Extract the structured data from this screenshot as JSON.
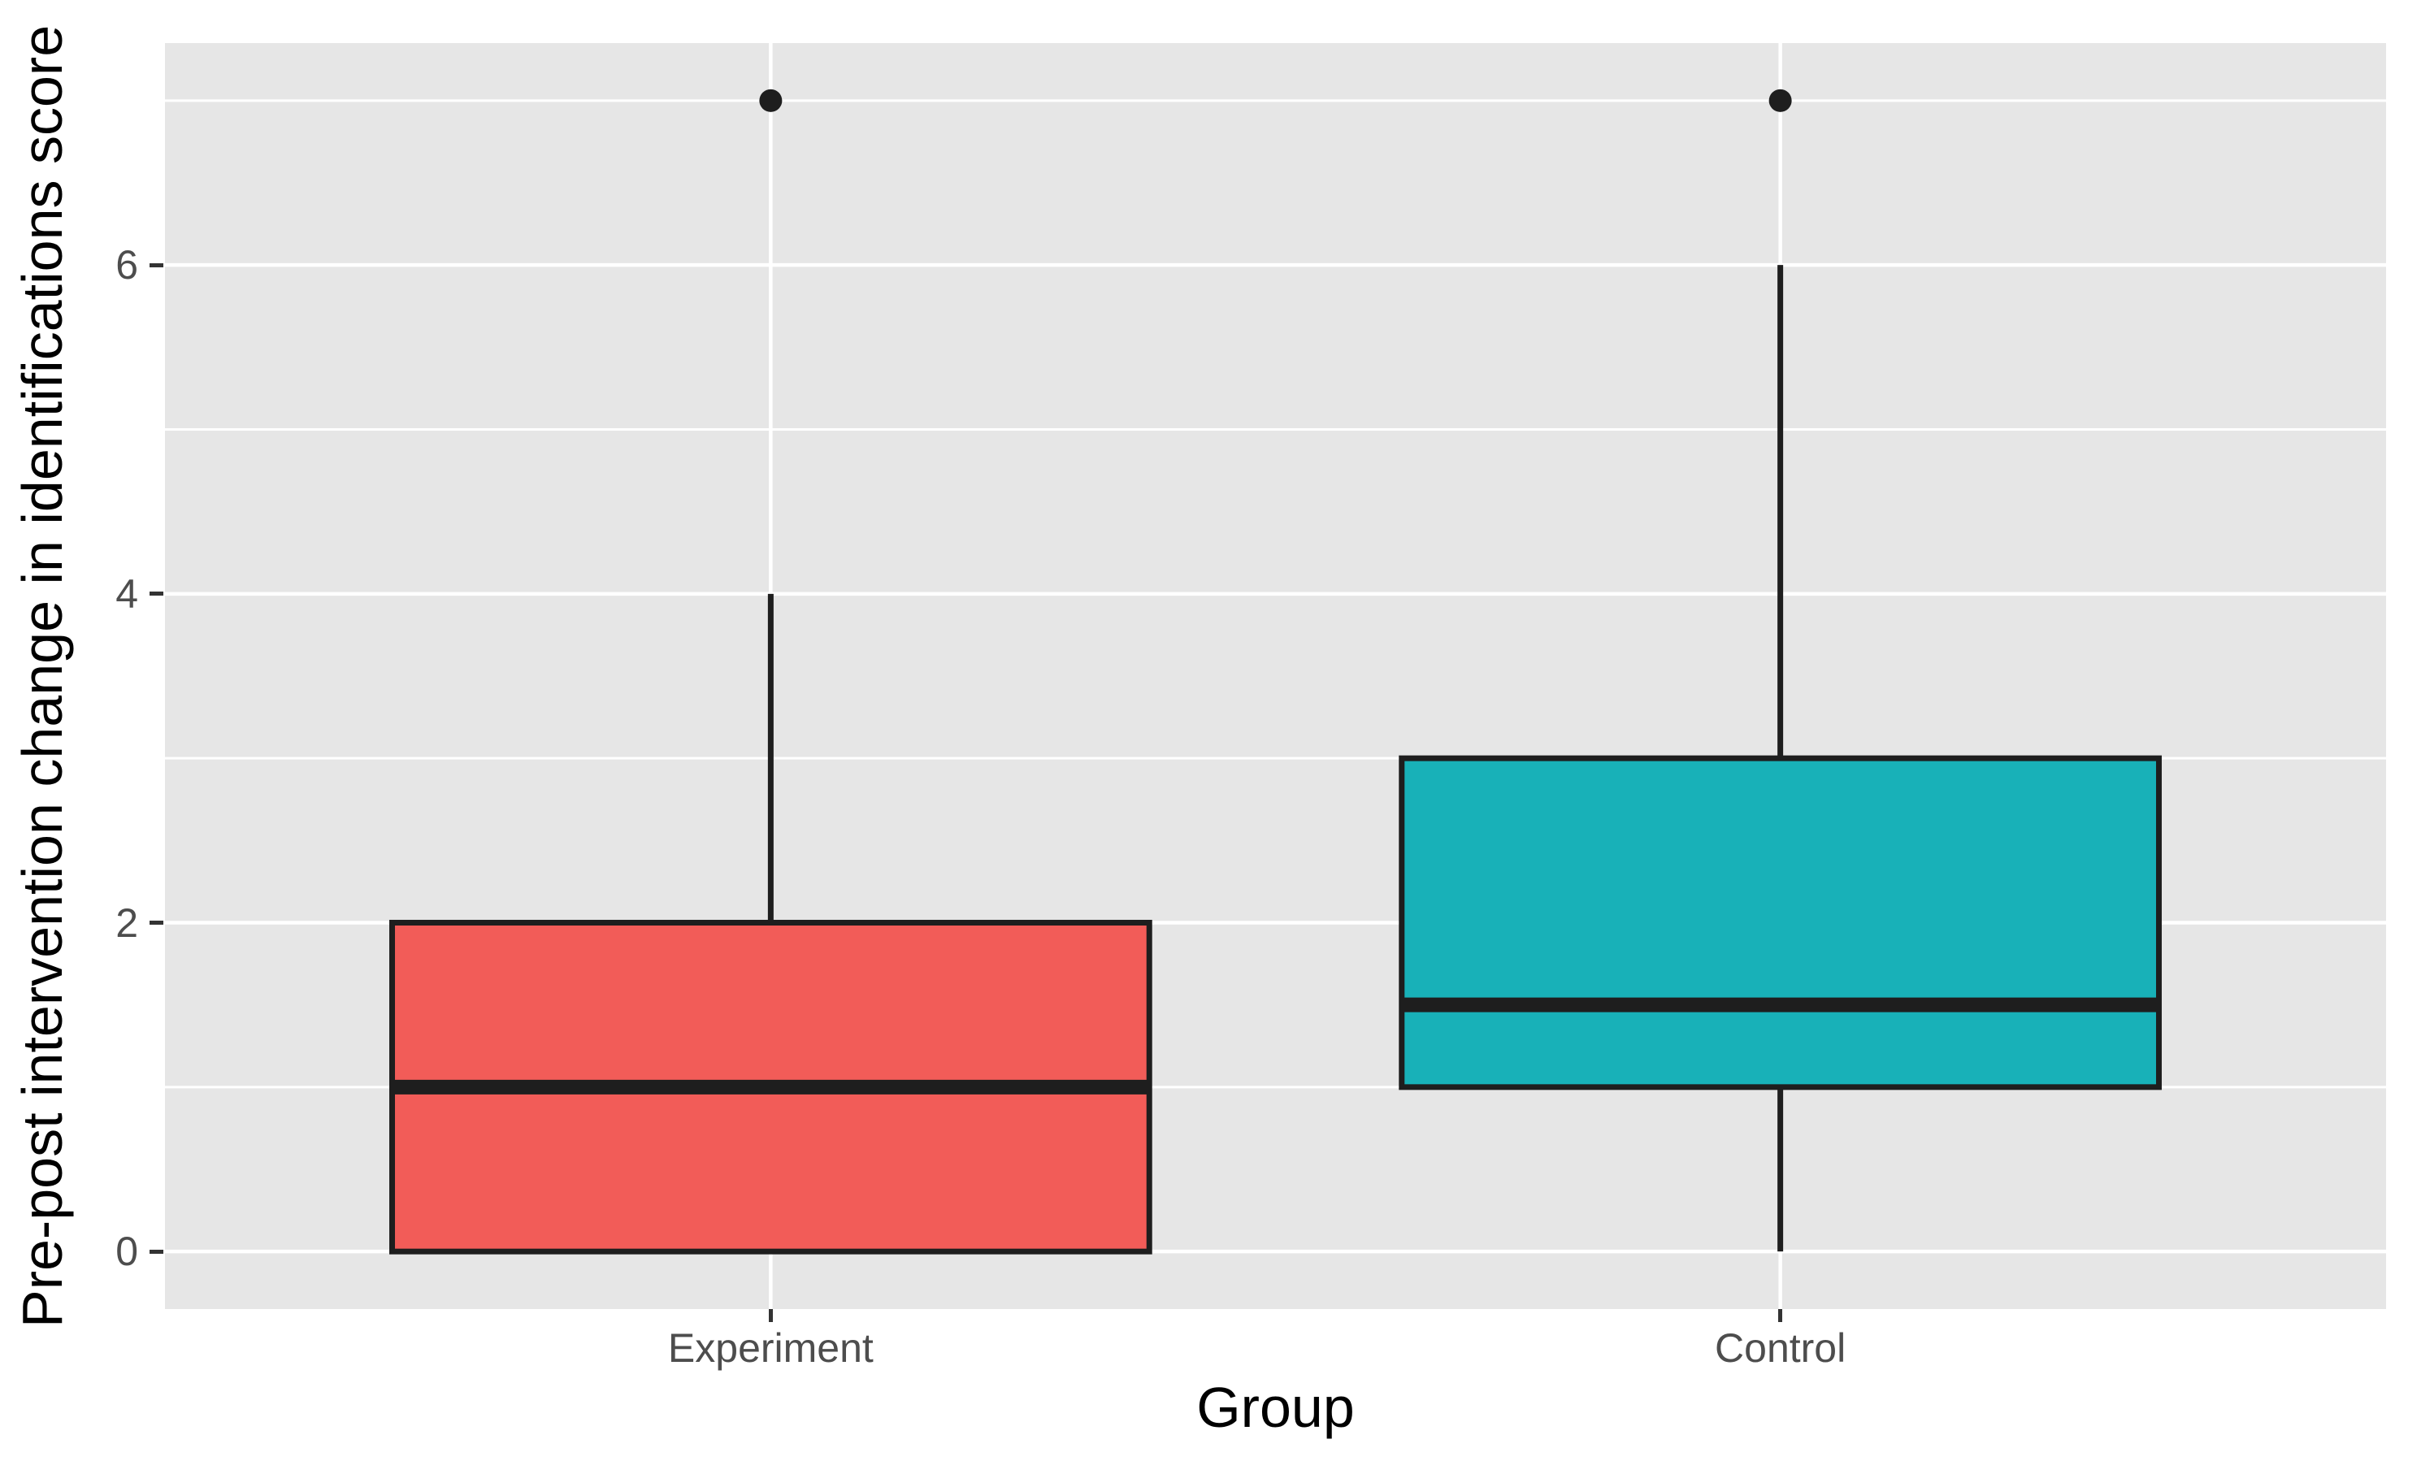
{
  "figure": {
    "background": "#FFFFFF",
    "panel_background": "#E6E6E6",
    "grid_color": "#FFFFFF",
    "tick_mark_color": "#333333"
  },
  "chart_data": {
    "type": "boxplot",
    "title": "",
    "xlabel": "Group",
    "ylabel": "Pre-post intervention change in identifications score",
    "categories": [
      "Experiment",
      "Control"
    ],
    "y_ticks": [
      0,
      2,
      4,
      6
    ],
    "y_minor_ticks": [
      1,
      3,
      5,
      7
    ],
    "ylim": [
      0,
      7
    ],
    "grid": true,
    "legend_position": "none",
    "axis_text_color": "#4D4D4D",
    "axis_title_color": "#000000",
    "box_border_color": "#1E1E1E",
    "outlier_color": "#1E1E1E",
    "series": [
      {
        "name": "Experiment",
        "fill": "#F25C58",
        "lower_whisker": 0,
        "q1": 0,
        "median": 1,
        "q3": 2,
        "upper_whisker": 4,
        "outliers": [
          7
        ]
      },
      {
        "name": "Control",
        "fill": "#18B1B8",
        "lower_whisker": 0,
        "q1": 1,
        "median": 1.5,
        "q3": 3,
        "upper_whisker": 6,
        "outliers": [
          7
        ]
      }
    ]
  }
}
